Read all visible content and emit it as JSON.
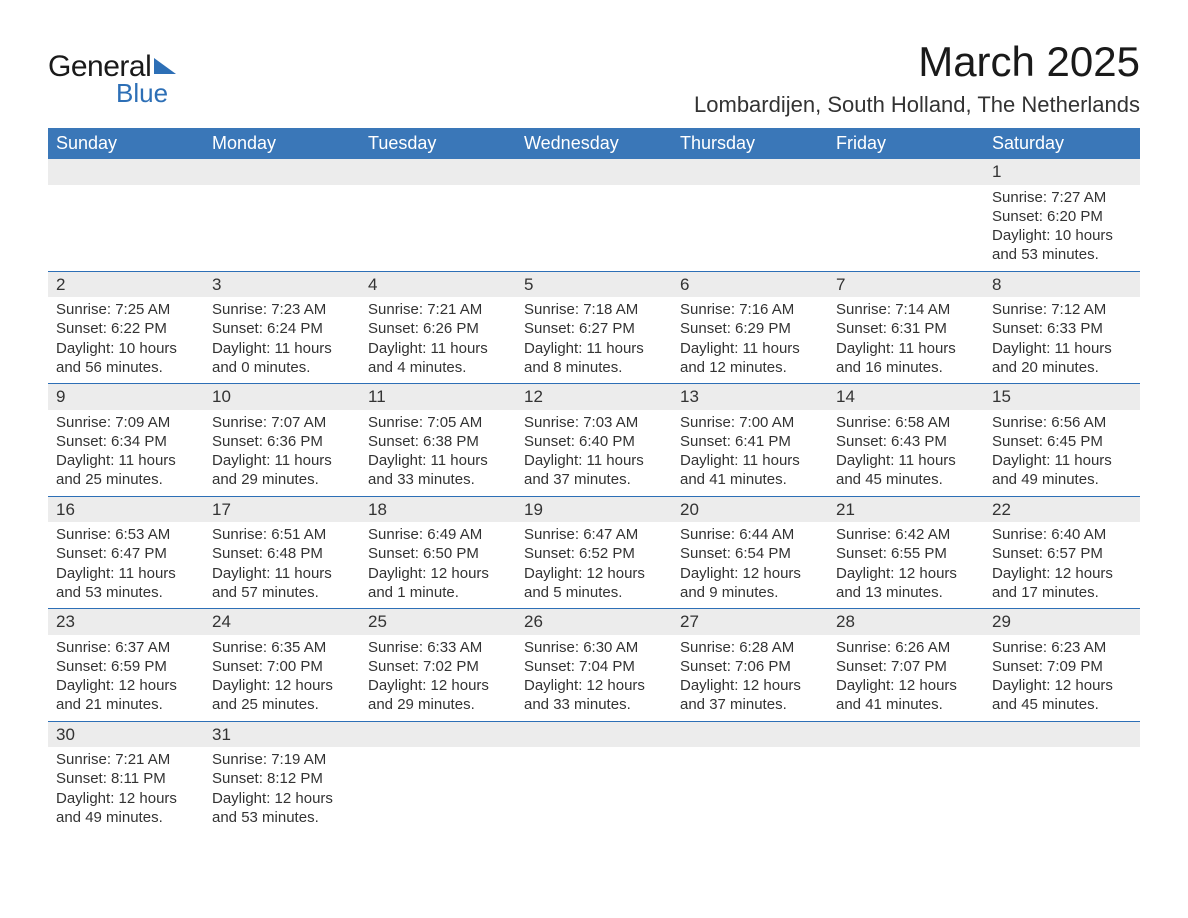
{
  "logo": {
    "text1": "General",
    "text2": "Blue"
  },
  "title": "March 2025",
  "location": "Lombardijen, South Holland, The Netherlands",
  "colors": {
    "header_bg": "#3a77b8",
    "header_text": "#ffffff",
    "row_divider": "#2d6fb6",
    "daynum_bg": "#ececec",
    "text": "#333333",
    "logo_blue": "#2d6fb6"
  },
  "typography": {
    "title_fontsize": 42,
    "location_fontsize": 22,
    "header_fontsize": 18,
    "daynum_fontsize": 17,
    "cell_fontsize": 15
  },
  "day_headers": [
    "Sunday",
    "Monday",
    "Tuesday",
    "Wednesday",
    "Thursday",
    "Friday",
    "Saturday"
  ],
  "weeks": [
    [
      null,
      null,
      null,
      null,
      null,
      null,
      {
        "n": "1",
        "sunrise": "Sunrise: 7:27 AM",
        "sunset": "Sunset: 6:20 PM",
        "daylight": "Daylight: 10 hours and 53 minutes."
      }
    ],
    [
      {
        "n": "2",
        "sunrise": "Sunrise: 7:25 AM",
        "sunset": "Sunset: 6:22 PM",
        "daylight": "Daylight: 10 hours and 56 minutes."
      },
      {
        "n": "3",
        "sunrise": "Sunrise: 7:23 AM",
        "sunset": "Sunset: 6:24 PM",
        "daylight": "Daylight: 11 hours and 0 minutes."
      },
      {
        "n": "4",
        "sunrise": "Sunrise: 7:21 AM",
        "sunset": "Sunset: 6:26 PM",
        "daylight": "Daylight: 11 hours and 4 minutes."
      },
      {
        "n": "5",
        "sunrise": "Sunrise: 7:18 AM",
        "sunset": "Sunset: 6:27 PM",
        "daylight": "Daylight: 11 hours and 8 minutes."
      },
      {
        "n": "6",
        "sunrise": "Sunrise: 7:16 AM",
        "sunset": "Sunset: 6:29 PM",
        "daylight": "Daylight: 11 hours and 12 minutes."
      },
      {
        "n": "7",
        "sunrise": "Sunrise: 7:14 AM",
        "sunset": "Sunset: 6:31 PM",
        "daylight": "Daylight: 11 hours and 16 minutes."
      },
      {
        "n": "8",
        "sunrise": "Sunrise: 7:12 AM",
        "sunset": "Sunset: 6:33 PM",
        "daylight": "Daylight: 11 hours and 20 minutes."
      }
    ],
    [
      {
        "n": "9",
        "sunrise": "Sunrise: 7:09 AM",
        "sunset": "Sunset: 6:34 PM",
        "daylight": "Daylight: 11 hours and 25 minutes."
      },
      {
        "n": "10",
        "sunrise": "Sunrise: 7:07 AM",
        "sunset": "Sunset: 6:36 PM",
        "daylight": "Daylight: 11 hours and 29 minutes."
      },
      {
        "n": "11",
        "sunrise": "Sunrise: 7:05 AM",
        "sunset": "Sunset: 6:38 PM",
        "daylight": "Daylight: 11 hours and 33 minutes."
      },
      {
        "n": "12",
        "sunrise": "Sunrise: 7:03 AM",
        "sunset": "Sunset: 6:40 PM",
        "daylight": "Daylight: 11 hours and 37 minutes."
      },
      {
        "n": "13",
        "sunrise": "Sunrise: 7:00 AM",
        "sunset": "Sunset: 6:41 PM",
        "daylight": "Daylight: 11 hours and 41 minutes."
      },
      {
        "n": "14",
        "sunrise": "Sunrise: 6:58 AM",
        "sunset": "Sunset: 6:43 PM",
        "daylight": "Daylight: 11 hours and 45 minutes."
      },
      {
        "n": "15",
        "sunrise": "Sunrise: 6:56 AM",
        "sunset": "Sunset: 6:45 PM",
        "daylight": "Daylight: 11 hours and 49 minutes."
      }
    ],
    [
      {
        "n": "16",
        "sunrise": "Sunrise: 6:53 AM",
        "sunset": "Sunset: 6:47 PM",
        "daylight": "Daylight: 11 hours and 53 minutes."
      },
      {
        "n": "17",
        "sunrise": "Sunrise: 6:51 AM",
        "sunset": "Sunset: 6:48 PM",
        "daylight": "Daylight: 11 hours and 57 minutes."
      },
      {
        "n": "18",
        "sunrise": "Sunrise: 6:49 AM",
        "sunset": "Sunset: 6:50 PM",
        "daylight": "Daylight: 12 hours and 1 minute."
      },
      {
        "n": "19",
        "sunrise": "Sunrise: 6:47 AM",
        "sunset": "Sunset: 6:52 PM",
        "daylight": "Daylight: 12 hours and 5 minutes."
      },
      {
        "n": "20",
        "sunrise": "Sunrise: 6:44 AM",
        "sunset": "Sunset: 6:54 PM",
        "daylight": "Daylight: 12 hours and 9 minutes."
      },
      {
        "n": "21",
        "sunrise": "Sunrise: 6:42 AM",
        "sunset": "Sunset: 6:55 PM",
        "daylight": "Daylight: 12 hours and 13 minutes."
      },
      {
        "n": "22",
        "sunrise": "Sunrise: 6:40 AM",
        "sunset": "Sunset: 6:57 PM",
        "daylight": "Daylight: 12 hours and 17 minutes."
      }
    ],
    [
      {
        "n": "23",
        "sunrise": "Sunrise: 6:37 AM",
        "sunset": "Sunset: 6:59 PM",
        "daylight": "Daylight: 12 hours and 21 minutes."
      },
      {
        "n": "24",
        "sunrise": "Sunrise: 6:35 AM",
        "sunset": "Sunset: 7:00 PM",
        "daylight": "Daylight: 12 hours and 25 minutes."
      },
      {
        "n": "25",
        "sunrise": "Sunrise: 6:33 AM",
        "sunset": "Sunset: 7:02 PM",
        "daylight": "Daylight: 12 hours and 29 minutes."
      },
      {
        "n": "26",
        "sunrise": "Sunrise: 6:30 AM",
        "sunset": "Sunset: 7:04 PM",
        "daylight": "Daylight: 12 hours and 33 minutes."
      },
      {
        "n": "27",
        "sunrise": "Sunrise: 6:28 AM",
        "sunset": "Sunset: 7:06 PM",
        "daylight": "Daylight: 12 hours and 37 minutes."
      },
      {
        "n": "28",
        "sunrise": "Sunrise: 6:26 AM",
        "sunset": "Sunset: 7:07 PM",
        "daylight": "Daylight: 12 hours and 41 minutes."
      },
      {
        "n": "29",
        "sunrise": "Sunrise: 6:23 AM",
        "sunset": "Sunset: 7:09 PM",
        "daylight": "Daylight: 12 hours and 45 minutes."
      }
    ],
    [
      {
        "n": "30",
        "sunrise": "Sunrise: 7:21 AM",
        "sunset": "Sunset: 8:11 PM",
        "daylight": "Daylight: 12 hours and 49 minutes."
      },
      {
        "n": "31",
        "sunrise": "Sunrise: 7:19 AM",
        "sunset": "Sunset: 8:12 PM",
        "daylight": "Daylight: 12 hours and 53 minutes."
      },
      null,
      null,
      null,
      null,
      null
    ]
  ]
}
